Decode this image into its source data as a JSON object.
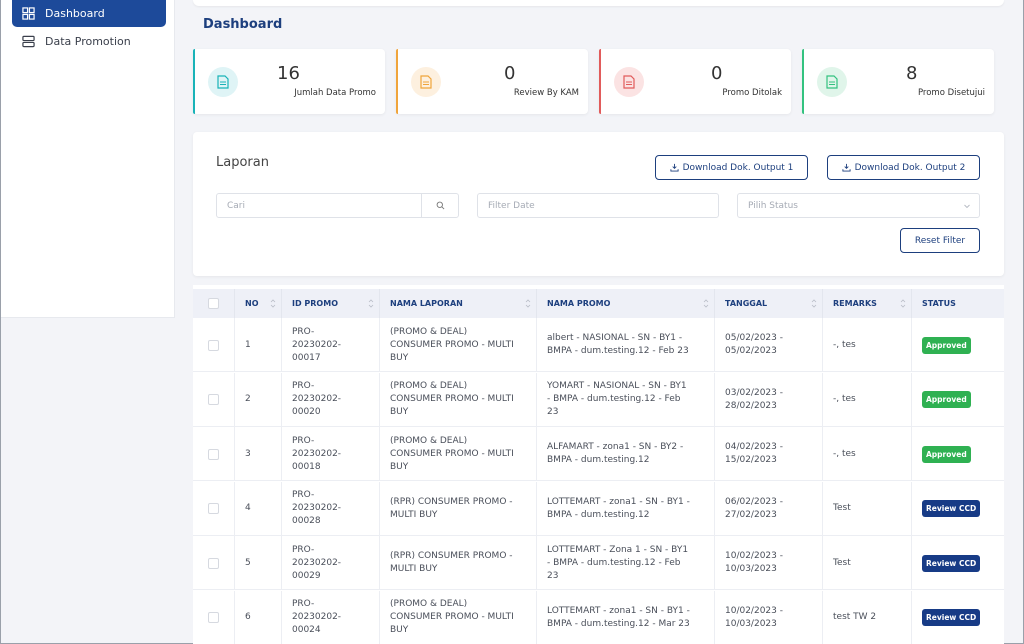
{
  "sidebar": {
    "items": [
      {
        "label": "Dashboard",
        "icon": "grid-icon",
        "active": true
      },
      {
        "label": "Data Promotion",
        "icon": "server-icon",
        "active": false
      }
    ]
  },
  "page": {
    "title": "Dashboard"
  },
  "stats": [
    {
      "value": "16",
      "label": "Jumlah Data Promo",
      "color": "#19b3b8",
      "bg": "#dff4f6",
      "icon": "document-icon"
    },
    {
      "value": "0",
      "label": "Review By KAM",
      "color": "#f0a53c",
      "bg": "#fdf0df",
      "icon": "document-icon"
    },
    {
      "value": "0",
      "label": "Promo Ditolak",
      "color": "#e15b5b",
      "bg": "#fbe3e3",
      "icon": "document-icon"
    },
    {
      "value": "8",
      "label": "Promo Disetujui",
      "color": "#33c27f",
      "bg": "#e0f5ea",
      "icon": "document-icon"
    }
  ],
  "report": {
    "title": "Laporan",
    "download1": "Download Dok. Output 1",
    "download2": "Download Dok. Output 2",
    "search_placeholder": "Cari",
    "date_placeholder": "Filter Date",
    "status_placeholder": "Pilih Status",
    "reset": "Reset Filter"
  },
  "table": {
    "columns": [
      "NO",
      "ID PROMO",
      "NAMA LAPORAN",
      "NAMA PROMO",
      "TANGGAL",
      "REMARKS",
      "STATUS"
    ],
    "rows": [
      {
        "no": "1",
        "id": [
          "PRO-",
          "20230202-",
          "00017"
        ],
        "laporan": [
          "(PROMO & DEAL)",
          "CONSUMER PROMO - MULTI",
          "BUY"
        ],
        "promo": [
          "albert - NASIONAL - SN - BY1 -",
          "BMPA - dum.testing.12 - Feb 23"
        ],
        "tanggal": [
          "05/02/2023 -",
          "05/02/2023"
        ],
        "remarks": "-, tes",
        "status": "Approved"
      },
      {
        "no": "2",
        "id": [
          "PRO-",
          "20230202-",
          "00020"
        ],
        "laporan": [
          "(PROMO & DEAL)",
          "CONSUMER PROMO - MULTI",
          "BUY"
        ],
        "promo": [
          "YOMART - NASIONAL - SN - BY1",
          "- BMPA - dum.testing.12 - Feb",
          "23"
        ],
        "tanggal": [
          "03/02/2023 -",
          "28/02/2023"
        ],
        "remarks": "-, tes",
        "status": "Approved"
      },
      {
        "no": "3",
        "id": [
          "PRO-",
          "20230202-",
          "00018"
        ],
        "laporan": [
          "(PROMO & DEAL)",
          "CONSUMER PROMO - MULTI",
          "BUY"
        ],
        "promo": [
          "ALFAMART - zona1 - SN - BY2 -",
          "BMPA - dum.testing.12"
        ],
        "tanggal": [
          "04/02/2023 -",
          "15/02/2023"
        ],
        "remarks": "-, tes",
        "status": "Approved"
      },
      {
        "no": "4",
        "id": [
          "PRO-",
          "20230202-",
          "00028"
        ],
        "laporan": [
          "(RPR) CONSUMER PROMO -",
          "MULTI BUY"
        ],
        "promo": [
          "LOTTEMART - zona1 - SN - BY1 -",
          "BMPA - dum.testing.12"
        ],
        "tanggal": [
          "06/02/2023 -",
          "27/02/2023"
        ],
        "remarks": "Test",
        "status": "Review CCD"
      },
      {
        "no": "5",
        "id": [
          "PRO-",
          "20230202-",
          "00029"
        ],
        "laporan": [
          "(RPR) CONSUMER PROMO -",
          "MULTI BUY"
        ],
        "promo": [
          "LOTTEMART - Zona 1 - SN - BY1",
          "- BMPA - dum.testing.12 - Feb",
          "23"
        ],
        "tanggal": [
          "10/02/2023 -",
          "10/03/2023"
        ],
        "remarks": "Test",
        "status": "Review CCD"
      },
      {
        "no": "6",
        "id": [
          "PRO-",
          "20230202-",
          "00024"
        ],
        "laporan": [
          "(PROMO & DEAL)",
          "CONSUMER PROMO - MULTI",
          "BUY"
        ],
        "promo": [
          "LOTTEMART - zona1 - SN - BY1 -",
          "BMPA - dum.testing.12 - Mar 23"
        ],
        "tanggal": [
          "10/02/2023 -",
          "10/03/2023"
        ],
        "remarks": "test TW 2",
        "status": "Review CCD"
      }
    ]
  },
  "colors": {
    "approved": "#2fb152",
    "review": "#173b86",
    "primary": "#1d4a9a"
  }
}
